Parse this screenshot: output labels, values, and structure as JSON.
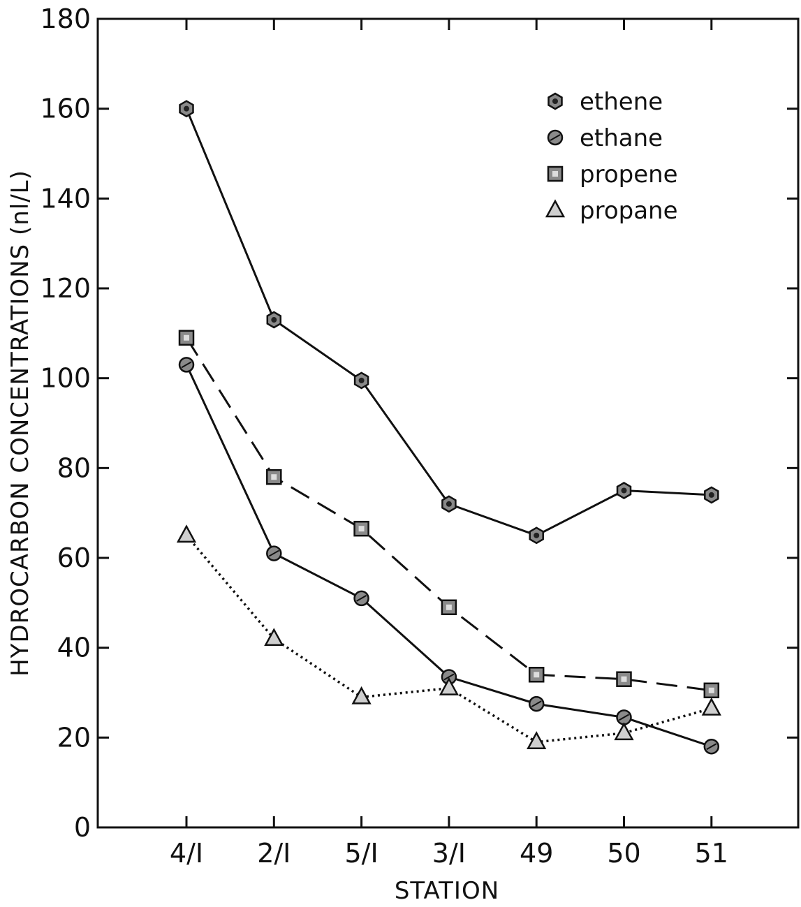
{
  "chart_data": {
    "type": "line",
    "xlabel": "STATION",
    "ylabel": "HYDROCARBON CONCENTRATIONS (nl/L)",
    "categories": [
      "4/I",
      "2/I",
      "5/I",
      "3/I",
      "49",
      "50",
      "51"
    ],
    "ylim": [
      0,
      180
    ],
    "yticks": [
      0,
      20,
      40,
      60,
      80,
      100,
      120,
      140,
      160,
      180
    ],
    "grid": false,
    "legend_position": "top-right",
    "series": [
      {
        "name": "ethene",
        "marker": "hexagon",
        "line_style": "solid",
        "values": [
          160,
          113,
          99.5,
          72,
          65,
          75,
          74
        ]
      },
      {
        "name": "ethane",
        "marker": "circle",
        "line_style": "solid",
        "values": [
          103,
          61,
          51,
          33.5,
          27.5,
          24.5,
          18
        ]
      },
      {
        "name": "propene",
        "marker": "square",
        "line_style": "dashed",
        "values": [
          109,
          78,
          66.5,
          49,
          34,
          33,
          30.5
        ]
      },
      {
        "name": "propane",
        "marker": "triangle",
        "line_style": "dotted",
        "values": [
          65,
          42,
          29,
          31,
          19,
          21,
          26.5
        ]
      }
    ]
  }
}
